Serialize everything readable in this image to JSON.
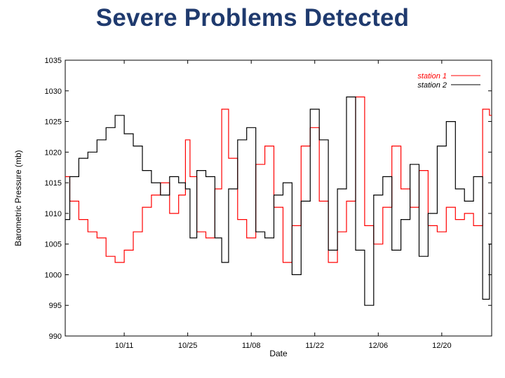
{
  "slide": {
    "title": "Severe Problems Detected"
  },
  "chart_data": {
    "type": "line",
    "title": "",
    "xlabel": "Date",
    "ylabel": "Barometric Pressure (mb)",
    "ylim": [
      990,
      1035
    ],
    "yticks": [
      990,
      995,
      1000,
      1005,
      1010,
      1015,
      1020,
      1025,
      1030,
      1035
    ],
    "xlim": [
      "09-28",
      "12-31"
    ],
    "xticks": [
      {
        "date": "10-11",
        "label": "10/11"
      },
      {
        "date": "10-25",
        "label": "10/25"
      },
      {
        "date": "11-08",
        "label": "11/08"
      },
      {
        "date": "11-22",
        "label": "11/22"
      },
      {
        "date": "12-06",
        "label": "12/06"
      },
      {
        "date": "12-20",
        "label": "12/20"
      }
    ],
    "legend_position": "top-right",
    "grid": false,
    "series": [
      {
        "name": "station 1",
        "color": "#ff0000",
        "x": [
          "09-28",
          "09-30",
          "10-02",
          "10-04",
          "10-06",
          "10-08",
          "10-10",
          "10-12",
          "10-14",
          "10-16",
          "10-18",
          "10-20",
          "10-22",
          "10-24",
          "10-25",
          "10-26",
          "10-28",
          "10-30",
          "11-01",
          "11-02",
          "11-04",
          "11-06",
          "11-08",
          "11-10",
          "11-12",
          "11-14",
          "11-16",
          "11-18",
          "11-20",
          "11-22",
          "11-24",
          "11-26",
          "11-28",
          "11-30",
          "12-02",
          "12-04",
          "12-06",
          "12-08",
          "12-10",
          "12-12",
          "12-14",
          "12-16",
          "12-18",
          "12-20",
          "12-22",
          "12-24",
          "12-26",
          "12-28",
          "12-30",
          "12-31"
        ],
        "values": [
          1016,
          1012,
          1009,
          1007,
          1006,
          1003,
          1002,
          1004,
          1007,
          1011,
          1013,
          1015,
          1010,
          1013,
          1022,
          1016,
          1007,
          1006,
          1014,
          1027,
          1019,
          1009,
          1006,
          1018,
          1021,
          1011,
          1002,
          1008,
          1021,
          1024,
          1012,
          1002,
          1007,
          1012,
          1029,
          1008,
          1005,
          1011,
          1021,
          1014,
          1011,
          1017,
          1008,
          1007,
          1011,
          1009,
          1010,
          1008,
          1027,
          1026
        ]
      },
      {
        "name": "station 2",
        "color": "#000000",
        "x": [
          "09-28",
          "09-30",
          "10-02",
          "10-04",
          "10-06",
          "10-08",
          "10-10",
          "10-12",
          "10-14",
          "10-16",
          "10-18",
          "10-20",
          "10-22",
          "10-24",
          "10-25",
          "10-26",
          "10-28",
          "10-30",
          "11-01",
          "11-02",
          "11-04",
          "11-06",
          "11-08",
          "11-10",
          "11-12",
          "11-14",
          "11-16",
          "11-18",
          "11-20",
          "11-22",
          "11-24",
          "11-26",
          "11-28",
          "11-30",
          "12-02",
          "12-04",
          "12-06",
          "12-08",
          "12-10",
          "12-12",
          "12-14",
          "12-16",
          "12-18",
          "12-20",
          "12-22",
          "12-24",
          "12-26",
          "12-28",
          "12-30",
          "12-31"
        ],
        "values": [
          1009,
          1016,
          1019,
          1020,
          1022,
          1024,
          1026,
          1023,
          1021,
          1017,
          1015,
          1013,
          1016,
          1015,
          1014,
          1006,
          1017,
          1016,
          1006,
          1002,
          1014,
          1022,
          1024,
          1007,
          1006,
          1013,
          1015,
          1000,
          1012,
          1027,
          1022,
          1004,
          1014,
          1029,
          1004,
          995,
          1013,
          1016,
          1004,
          1009,
          1018,
          1003,
          1010,
          1021,
          1025,
          1014,
          1012,
          1016,
          996,
          1005
        ]
      }
    ]
  }
}
